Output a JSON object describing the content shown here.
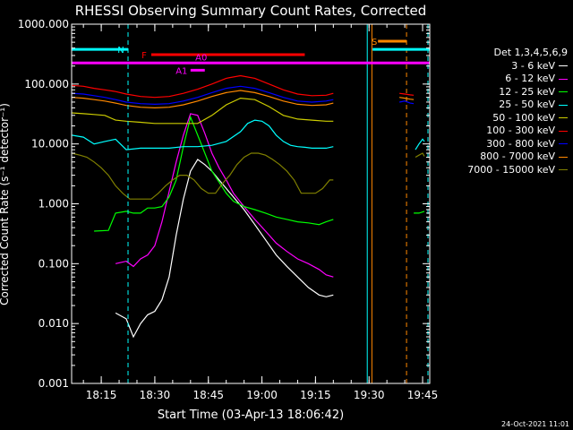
{
  "chart_data": {
    "type": "line",
    "title": "RHESSI Observing Summary Count Rates, Corrected",
    "xlabel": "Start Time (03-Apr-13 18:06:42)",
    "ylabel": "Corrected Count Rate (s⁻¹ detector⁻¹)",
    "yscale": "log",
    "ylim": [
      0.001,
      1000
    ],
    "xlim_minutes": [
      6.7,
      107
    ],
    "y_ticks": [
      "1000.000",
      "100.000",
      "10.000",
      "1.000",
      "0.100",
      "0.010",
      "0.001"
    ],
    "x_ticks": [
      "18:15",
      "18:30",
      "18:45",
      "19:00",
      "19:15",
      "19:30",
      "19:45"
    ],
    "x_tick_minutes": [
      15,
      30,
      45,
      60,
      75,
      90,
      105
    ],
    "legend_title": "Det 1,3,4,5,6,9",
    "series": [
      {
        "name": "3 - 6 keV",
        "color": "#ffffff",
        "t": [
          19,
          22,
          24,
          26,
          28,
          30,
          32,
          34,
          36,
          38,
          40,
          42,
          44,
          46,
          48,
          50,
          52,
          55,
          58,
          61,
          64,
          67,
          70,
          73,
          76,
          78,
          80
        ],
        "v": [
          0.015,
          0.012,
          0.006,
          0.01,
          0.014,
          0.016,
          0.025,
          0.06,
          0.3,
          1.2,
          3.5,
          5.5,
          4.5,
          3.5,
          2.5,
          1.8,
          1.3,
          0.8,
          0.45,
          0.25,
          0.14,
          0.09,
          0.06,
          0.04,
          0.03,
          0.028,
          0.03
        ]
      },
      {
        "name": "6 - 12 keV",
        "color": "#ff00ff",
        "t": [
          19,
          22,
          24,
          26,
          28,
          30,
          32,
          34,
          36,
          38,
          40,
          42,
          44,
          46,
          48,
          50,
          52,
          55,
          58,
          61,
          64,
          67,
          70,
          73,
          76,
          78,
          80
        ],
        "v": [
          0.1,
          0.11,
          0.09,
          0.12,
          0.14,
          0.2,
          0.5,
          1.6,
          5,
          14,
          32,
          30,
          15,
          7,
          4,
          2.5,
          1.5,
          0.9,
          0.55,
          0.35,
          0.22,
          0.16,
          0.12,
          0.1,
          0.08,
          0.065,
          0.06
        ]
      },
      {
        "name": "12 - 25 keV",
        "color": "#00ff00",
        "t": [
          13,
          17,
          19,
          22,
          24,
          26,
          28,
          30,
          32,
          34,
          36,
          38,
          40,
          42,
          44,
          46,
          48,
          50,
          52,
          55,
          58,
          61,
          64,
          67,
          70,
          73,
          76,
          78,
          80
        ],
        "v": [
          0.35,
          0.36,
          0.7,
          0.75,
          0.7,
          0.7,
          0.85,
          0.85,
          0.9,
          1.3,
          2.5,
          9,
          28,
          14,
          7,
          3.5,
          2.3,
          1.5,
          1.1,
          0.9,
          0.8,
          0.7,
          0.6,
          0.55,
          0.5,
          0.48,
          0.45,
          0.5,
          0.55
        ]
      },
      {
        "name": "25 - 50 keV",
        "color": "#00ffff",
        "t": [
          6.7,
          10,
          13,
          16,
          19,
          22,
          26,
          30,
          34,
          38,
          42,
          46,
          50,
          54,
          56,
          58,
          60,
          62,
          64,
          66,
          68,
          70,
          72,
          74,
          76,
          78,
          80
        ],
        "v": [
          14,
          13,
          10,
          11,
          12,
          8,
          8.5,
          8.5,
          8.5,
          9,
          9,
          9.5,
          11,
          16,
          22,
          25,
          24,
          20,
          14,
          11,
          9.5,
          9,
          8.8,
          8.5,
          8.5,
          8.5,
          9
        ]
      },
      {
        "name": "50 - 100 keV",
        "color": "#cccc00",
        "t": [
          6.7,
          10,
          13,
          16,
          19,
          22,
          26,
          30,
          34,
          38,
          42,
          46,
          50,
          54,
          58,
          62,
          66,
          70,
          74,
          78,
          80
        ],
        "v": [
          33,
          32,
          31,
          30,
          25,
          24,
          23,
          22,
          22,
          22,
          22,
          30,
          45,
          58,
          55,
          42,
          30,
          26,
          25,
          24,
          24
        ]
      },
      {
        "name": "100 - 300 keV",
        "color": "#ff0000",
        "t": [
          6.7,
          10,
          13,
          16,
          19,
          22,
          26,
          30,
          34,
          38,
          42,
          46,
          50,
          54,
          58,
          62,
          66,
          70,
          74,
          78,
          80
        ],
        "v": [
          95,
          92,
          85,
          80,
          75,
          68,
          62,
          60,
          62,
          70,
          82,
          100,
          125,
          138,
          125,
          100,
          80,
          68,
          64,
          65,
          70
        ]
      },
      {
        "name": "300 - 800 keV",
        "color": "#0000ff",
        "t": [
          6.7,
          10,
          13,
          16,
          19,
          22,
          26,
          30,
          34,
          38,
          42,
          46,
          50,
          54,
          58,
          62,
          66,
          70,
          74,
          78,
          80
        ],
        "v": [
          70,
          68,
          64,
          60,
          55,
          50,
          47,
          46,
          47,
          52,
          60,
          72,
          85,
          92,
          85,
          72,
          60,
          52,
          50,
          52,
          55
        ]
      },
      {
        "name": "800 - 7000 keV",
        "color": "#ff8800",
        "t": [
          6.7,
          10,
          13,
          16,
          19,
          22,
          26,
          30,
          34,
          38,
          42,
          46,
          50,
          54,
          58,
          62,
          66,
          70,
          74,
          78,
          80
        ],
        "v": [
          60,
          58,
          55,
          52,
          48,
          44,
          41,
          40,
          41,
          45,
          52,
          62,
          72,
          78,
          72,
          62,
          52,
          46,
          44,
          45,
          48
        ]
      },
      {
        "name": "7000 - 15000 keV",
        "color": "#808000",
        "t": [
          6.7,
          9,
          11,
          13,
          15,
          17,
          19,
          21,
          23,
          25,
          27,
          29,
          31,
          33,
          35,
          37,
          39,
          41,
          43,
          45,
          47,
          49,
          51,
          53,
          55,
          57,
          59,
          61,
          63,
          65,
          67,
          69,
          71,
          73,
          75,
          77,
          79,
          80
        ],
        "v": [
          7,
          6.5,
          6,
          5,
          4,
          3,
          2,
          1.5,
          1.2,
          1.2,
          1.2,
          1.2,
          1.5,
          2,
          2.5,
          3,
          3,
          2.5,
          1.8,
          1.5,
          1.5,
          2.2,
          3,
          4.5,
          6,
          7,
          7,
          6.5,
          5.5,
          4.5,
          3.5,
          2.5,
          1.5,
          1.5,
          1.5,
          1.8,
          2.5,
          2.5
        ]
      }
    ],
    "post_gap_series": [
      {
        "color": "#ff0000",
        "t": [
          98.5,
          100,
          101.5,
          102.5
        ],
        "v": [
          70,
          68,
          66,
          65
        ]
      },
      {
        "color": "#0000ff",
        "t": [
          98.5,
          100,
          101.5,
          102.5
        ],
        "v": [
          50,
          52,
          48,
          47
        ]
      },
      {
        "color": "#ff8800",
        "t": [
          98.5,
          100,
          101.5,
          102.5
        ],
        "v": [
          60,
          58,
          56,
          55
        ]
      },
      {
        "color": "#00ffff",
        "t": [
          103,
          104,
          105,
          105.5
        ],
        "v": [
          8,
          10,
          12,
          11
        ]
      },
      {
        "color": "#808000",
        "t": [
          103,
          104,
          105,
          105.5
        ],
        "v": [
          6,
          6.5,
          7,
          6.2
        ]
      },
      {
        "color": "#00ff00",
        "t": [
          102.5,
          104,
          105.5
        ],
        "v": [
          0.7,
          0.7,
          0.75
        ]
      }
    ],
    "annotations": [
      {
        "label": "N",
        "color": "#00ffff",
        "t_start": 6.7,
        "t_end": 22.5,
        "t_label": 20.5,
        "v": 380,
        "kind": "bar"
      },
      {
        "label": "N",
        "color": "#00ffff",
        "t_start": 91,
        "t_end": 107,
        "v": 380,
        "kind": "bar_only"
      },
      {
        "label": "F",
        "color": "#ff0000",
        "t_start": 29,
        "t_end": 72,
        "t_label": 27,
        "v": 310,
        "kind": "bar"
      },
      {
        "label": "S",
        "color": "#ff8800",
        "t_start": 92.5,
        "t_end": 100.5,
        "t_label": 91.5,
        "v": 520,
        "kind": "bar"
      },
      {
        "label": "A0",
        "color": "#ff00ff",
        "t_start": 6.7,
        "t_end": 107,
        "t_label": 43,
        "v": 225,
        "kind": "bar_label_above"
      },
      {
        "label": "A1",
        "color": "#ff00ff",
        "t_start": 40,
        "t_end": 44,
        "t_label": 37.5,
        "v": 170,
        "kind": "bar"
      }
    ],
    "vlines": [
      {
        "t": 22.5,
        "color": "#00ffff",
        "dashed": true
      },
      {
        "t": 89.5,
        "color": "#00ffff",
        "dashed": false
      },
      {
        "t": 90.8,
        "color": "#ff8800",
        "dashed": false
      },
      {
        "t": 100.5,
        "color": "#ff8800",
        "dashed": true
      },
      {
        "t": 106.5,
        "color": "#00ffff",
        "dashed": true
      }
    ],
    "grid": false,
    "legend_position": "right"
  },
  "timestamp": "24-Oct-2021 11:01"
}
